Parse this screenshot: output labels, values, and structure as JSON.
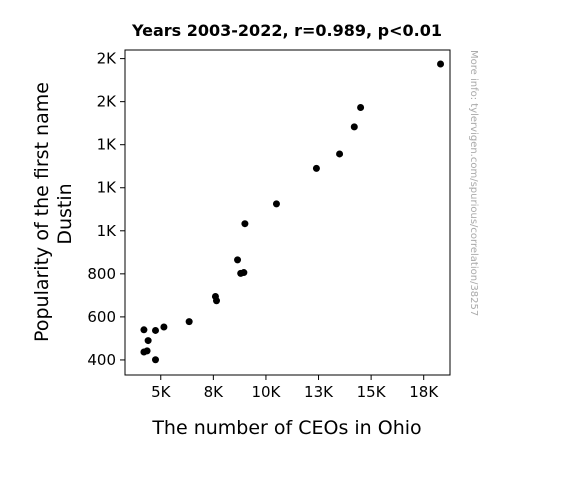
{
  "chart_data": {
    "type": "scatter",
    "title": "Years 2003-2022, r=0.989, p<0.01",
    "xlabel": "The number of CEOs in Ohio",
    "ylabel_lines": [
      "Popularity of the first name",
      "Dustin"
    ],
    "watermark": "More info: tylervigen.com/spurious/correlation/38257",
    "xlim": [
      3300,
      18750
    ],
    "ylim": [
      330,
      1840
    ],
    "x_ticks": [
      {
        "value": 5000,
        "label": "5K"
      },
      {
        "value": 7500,
        "label": "8K"
      },
      {
        "value": 10000,
        "label": "10K"
      },
      {
        "value": 12500,
        "label": "13K"
      },
      {
        "value": 15000,
        "label": "15K"
      },
      {
        "value": 17500,
        "label": "18K"
      }
    ],
    "y_ticks": [
      {
        "value": 400,
        "label": "400"
      },
      {
        "value": 600,
        "label": "600"
      },
      {
        "value": 800,
        "label": "800"
      },
      {
        "value": 1000,
        "label": "1K"
      },
      {
        "value": 1200,
        "label": "1K"
      },
      {
        "value": 1400,
        "label": "1K"
      },
      {
        "value": 1600,
        "label": "2K"
      },
      {
        "value": 1800,
        "label": "2K"
      }
    ],
    "marker_color": "#000000",
    "grid": false,
    "points": [
      {
        "x": 4200,
        "y": 540
      },
      {
        "x": 4200,
        "y": 437
      },
      {
        "x": 4350,
        "y": 442
      },
      {
        "x": 4400,
        "y": 490
      },
      {
        "x": 4750,
        "y": 401
      },
      {
        "x": 4750,
        "y": 537
      },
      {
        "x": 5150,
        "y": 553
      },
      {
        "x": 6350,
        "y": 578
      },
      {
        "x": 7600,
        "y": 695
      },
      {
        "x": 7650,
        "y": 675
      },
      {
        "x": 8650,
        "y": 865
      },
      {
        "x": 8800,
        "y": 802
      },
      {
        "x": 8950,
        "y": 806
      },
      {
        "x": 9000,
        "y": 1033
      },
      {
        "x": 10500,
        "y": 1125
      },
      {
        "x": 12400,
        "y": 1290
      },
      {
        "x": 13500,
        "y": 1357
      },
      {
        "x": 14200,
        "y": 1483
      },
      {
        "x": 14500,
        "y": 1573
      },
      {
        "x": 18300,
        "y": 1775
      }
    ]
  }
}
